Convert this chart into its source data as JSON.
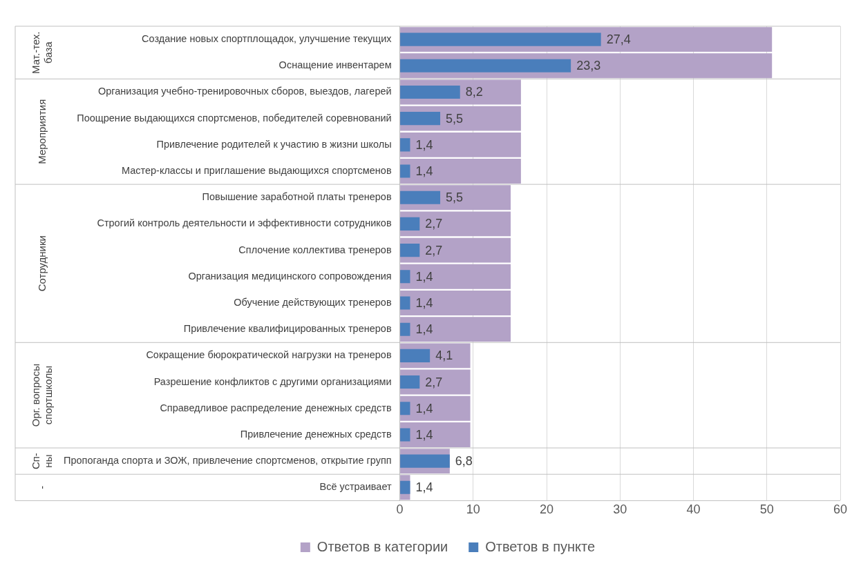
{
  "chart_data": {
    "type": "bar",
    "orientation": "horizontal",
    "categories": [
      "Создание новых спортплощадок, улучшение текущих",
      "Оснащение инвентарем",
      "Организация учебно-тренировочных сборов, выездов, лагерей",
      "Поощрение выдающихся спортсменов, победителей соревнований",
      "Привлечение родителей к участию в жизни школы",
      "Мастер-классы и приглашение выдающихся спортсменов",
      "Повышение заработной платы тренеров",
      "Строгий контроль деятельности и эффективности сотрудников",
      "Сплочение коллектива тренеров",
      "Организация медицинского сопровождения",
      "Обучение действующих тренеров",
      "Привлечение квалифицированных тренеров",
      "Сокращение бюрократической нагрузки на тренеров",
      "Разрешение конфликтов с другими организациями",
      "Справедливое распределение денежных средств",
      "Привлечение денежных средств",
      "Пропоганда спорта и ЗОЖ, привлечение спортсменов, открытие групп",
      "Всё устраивает"
    ],
    "series": [
      {
        "name": "Ответов в категории",
        "color": "#b3a2c7",
        "values": [
          50.7,
          50.7,
          16.5,
          16.5,
          16.5,
          16.5,
          15.1,
          15.1,
          15.1,
          15.1,
          15.1,
          15.1,
          9.6,
          9.6,
          9.6,
          9.6,
          6.8,
          1.4
        ]
      },
      {
        "name": "Ответов в пункте",
        "color": "#4a7ebb",
        "values": [
          27.4,
          23.3,
          8.2,
          5.5,
          1.4,
          1.4,
          5.5,
          2.7,
          2.7,
          1.4,
          1.4,
          1.4,
          4.1,
          2.7,
          1.4,
          1.4,
          6.8,
          1.4
        ],
        "value_labels": [
          "27,4",
          "23,3",
          "8,2",
          "5,5",
          "1,4",
          "1,4",
          "5,5",
          "2,7",
          "2,7",
          "1,4",
          "1,4",
          "1,4",
          "4,1",
          "2,7",
          "1,4",
          "1,4",
          "6,8",
          "1,4"
        ]
      }
    ],
    "xlim": [
      0,
      60
    ],
    "xticks": [
      0,
      10,
      20,
      30,
      40,
      50,
      60
    ],
    "grid": "x",
    "legend": "bottom",
    "annotations": [
      "Мат.-тех.\nбаза",
      "Мероприятия",
      "Сотрудники",
      "Орг. вопросы\nспортшколы",
      "Сп-\nны",
      "-"
    ]
  }
}
